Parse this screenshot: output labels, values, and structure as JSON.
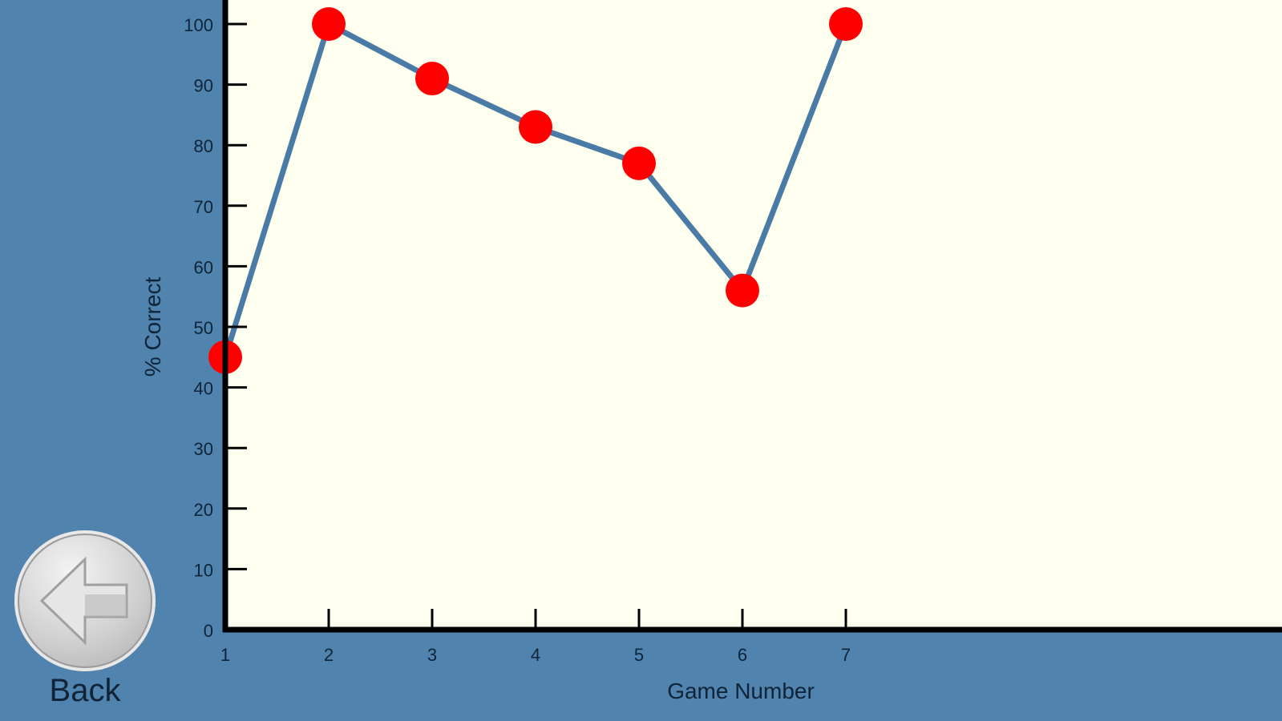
{
  "chart_data": {
    "type": "line",
    "xlabel": "Game Number",
    "ylabel": "% Correct",
    "x": [
      1,
      2,
      3,
      4,
      5,
      6,
      7
    ],
    "values": [
      45,
      100,
      91,
      83,
      77,
      56,
      100
    ],
    "xticks": [
      "1",
      "2",
      "3",
      "4",
      "5",
      "6",
      "7"
    ],
    "yticks": [
      "0",
      "10",
      "20",
      "30",
      "40",
      "50",
      "60",
      "70",
      "80",
      "90",
      "100"
    ],
    "ylim": [
      0,
      100
    ],
    "grid": false,
    "line_color": "#4a7ba6",
    "marker_color": "#ff0000",
    "plot_background": "#fffff0"
  },
  "back_button": {
    "label": "Back",
    "icon": "arrow-left-icon"
  },
  "colors": {
    "background": "#5083ad"
  }
}
